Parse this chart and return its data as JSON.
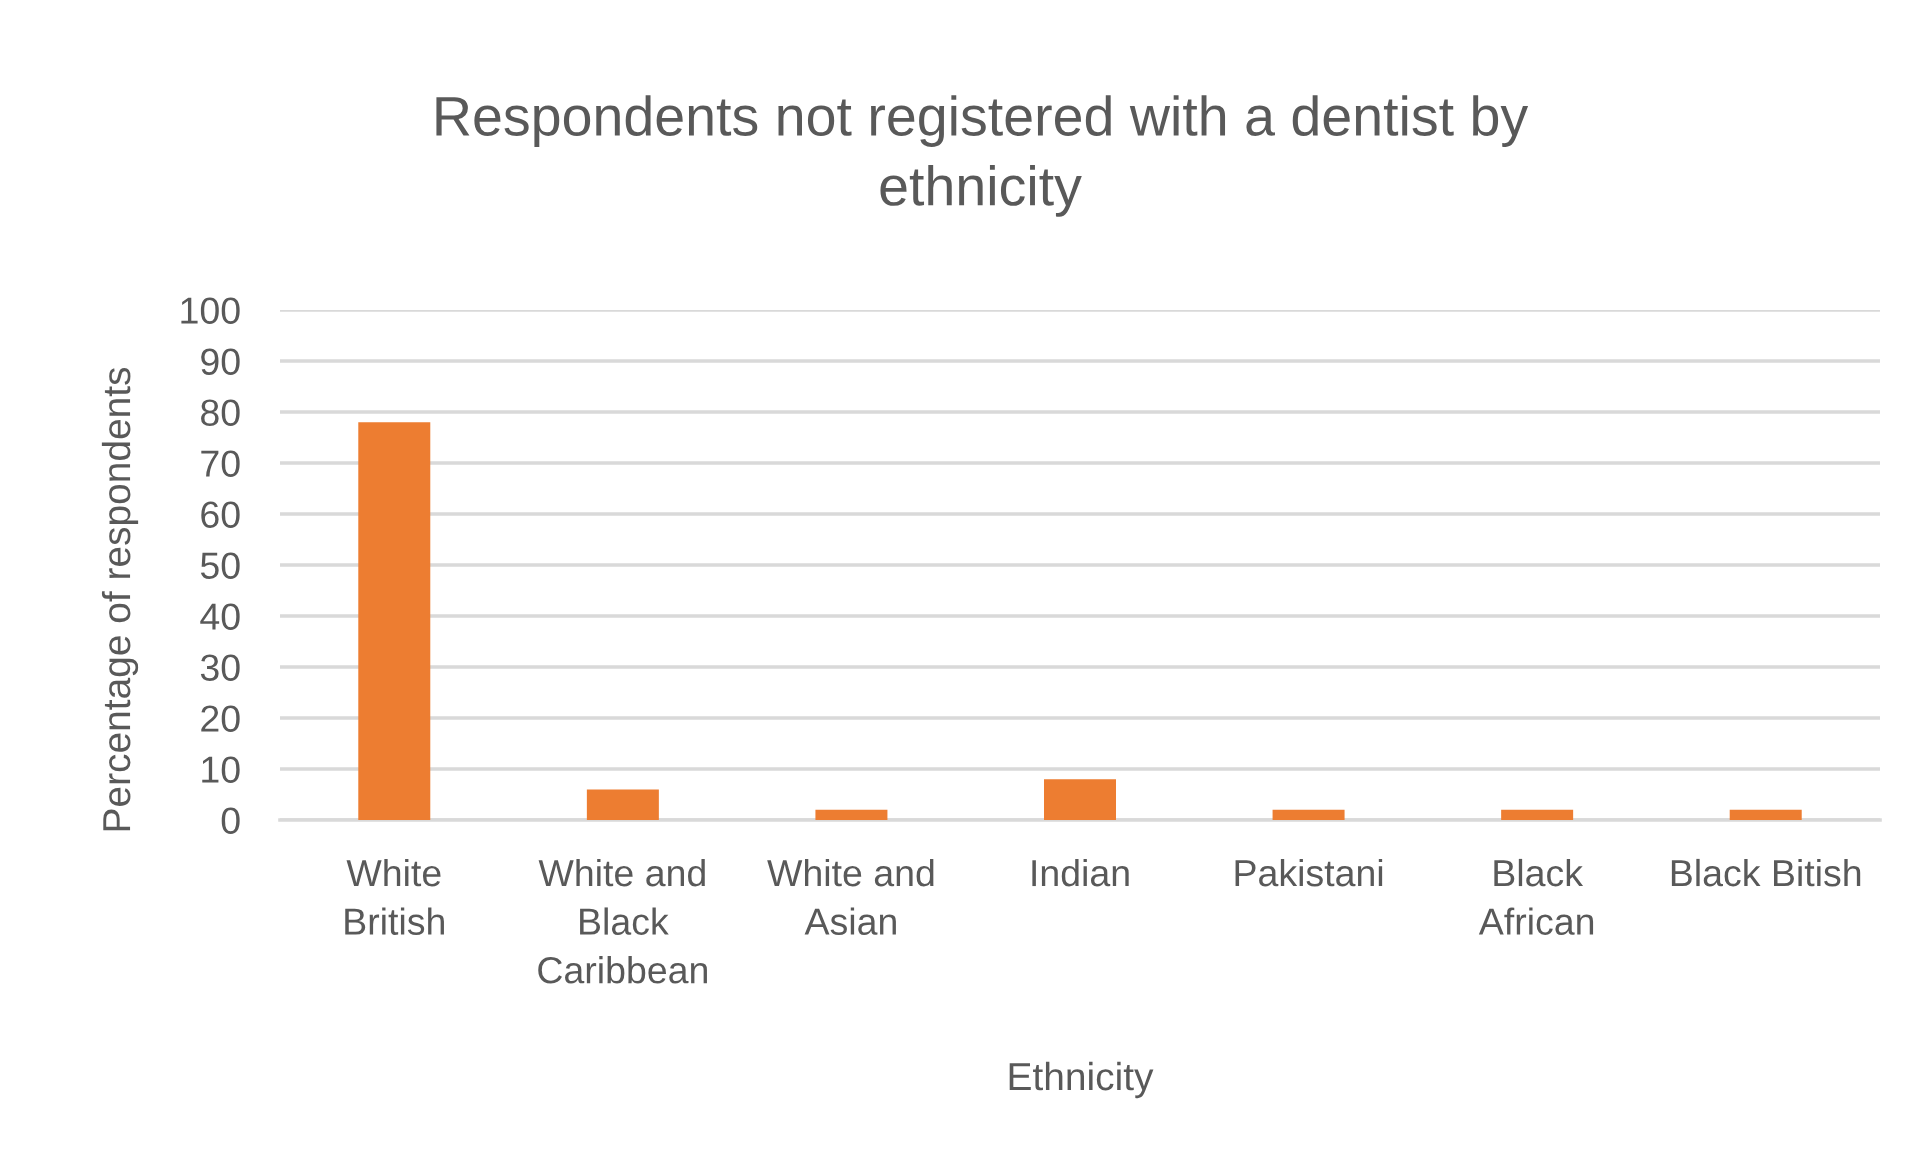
{
  "chart_data": {
    "type": "bar",
    "title": "Respondents not registered with a dentist by ethnicity",
    "xlabel": "Ethnicity",
    "ylabel": "Percentage of respondents",
    "categories": [
      "White British",
      "White and Black Caribbean",
      "White and Asian",
      "Indian",
      "Pakistani",
      "Black African",
      "Black Bitish"
    ],
    "values": [
      78,
      6,
      2,
      8,
      2,
      2,
      2
    ],
    "color": "#ed7d31",
    "ylim": [
      0,
      100
    ],
    "yticks": [
      0,
      10,
      20,
      30,
      40,
      50,
      60,
      70,
      80,
      90,
      100
    ],
    "grid": "y"
  }
}
